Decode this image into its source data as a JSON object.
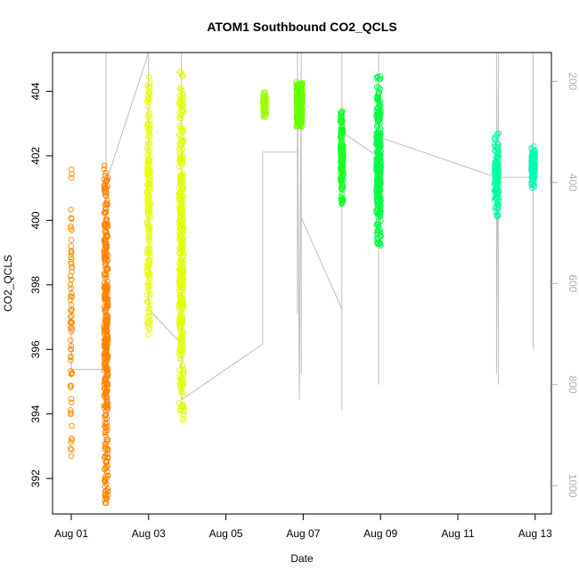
{
  "chart_data": {
    "type": "scatter",
    "title": "ATOM1 Southbound CO2_QCLS",
    "xlabel": "Date",
    "ylabel": "CO2_QCLS",
    "xlim": [
      0.0,
      12.5
    ],
    "ylim": [
      390.9,
      405.2
    ],
    "y2lim": [
      1056,
      143
    ],
    "x_ticks": [
      {
        "x": 0,
        "label": "Aug 01"
      },
      {
        "x": 2,
        "label": "Aug 03"
      },
      {
        "x": 4,
        "label": "Aug 05"
      },
      {
        "x": 6,
        "label": "Aug 07"
      },
      {
        "x": 8,
        "label": "Aug 09"
      },
      {
        "x": 10,
        "label": "Aug 11"
      },
      {
        "x": 12,
        "label": "Aug 13"
      }
    ],
    "y_ticks": [
      392,
      394,
      396,
      398,
      400,
      402,
      404
    ],
    "y2_ticks": [
      200,
      400,
      600,
      800,
      1000
    ],
    "grid": false,
    "legend": "none",
    "point_style": "open-circle",
    "secondary_series_color": "#bebebe",
    "clusters": [
      {
        "x": 0.0,
        "xspread": 0.02,
        "ymin": 392.4,
        "ymax": 401.6,
        "color": "#ff8c00",
        "n": 70
      },
      {
        "x": 0.9,
        "xspread": 0.05,
        "ymin": 391.2,
        "ymax": 401.7,
        "color": "#ff8400",
        "n": 380
      },
      {
        "x": 2.0,
        "xspread": 0.04,
        "ymin": 396.4,
        "ymax": 404.5,
        "color": "#eaff00",
        "n": 200
      },
      {
        "x": 2.85,
        "xspread": 0.06,
        "ymin": 393.7,
        "ymax": 404.7,
        "color": "#e2ff00",
        "n": 380
      },
      {
        "x": 5.0,
        "xspread": 0.04,
        "ymin": 403.2,
        "ymax": 404.0,
        "color": "#9cff00",
        "n": 80
      },
      {
        "x": 5.9,
        "xspread": 0.08,
        "ymin": 402.9,
        "ymax": 404.3,
        "color": "#66ff00",
        "n": 300
      },
      {
        "x": 7.0,
        "xspread": 0.04,
        "ymin": 400.5,
        "ymax": 403.4,
        "color": "#19ff26",
        "n": 150
      },
      {
        "x": 7.95,
        "xspread": 0.06,
        "ymin": 399.2,
        "ymax": 404.5,
        "color": "#00ff40",
        "n": 320
      },
      {
        "x": 11.0,
        "xspread": 0.06,
        "ymin": 400.1,
        "ymax": 402.7,
        "color": "#00ffa0",
        "n": 140
      },
      {
        "x": 11.95,
        "xspread": 0.05,
        "ymin": 401.0,
        "ymax": 402.3,
        "color": "#00ffb2",
        "n": 120
      }
    ],
    "altitude_path": [
      [
        0.0,
        600
      ],
      [
        0.0,
        700
      ],
      [
        0.0,
        770
      ],
      [
        0.9,
        770
      ],
      [
        0.9,
        310
      ],
      [
        0.9,
        143
      ],
      [
        0.9,
        830
      ],
      [
        0.9,
        400
      ],
      [
        2.0,
        143
      ],
      [
        2.0,
        650
      ],
      [
        2.85,
        720
      ],
      [
        2.85,
        800
      ],
      [
        2.85,
        143
      ],
      [
        2.85,
        830
      ],
      [
        4.95,
        720
      ],
      [
        4.95,
        340
      ],
      [
        5.85,
        340
      ],
      [
        5.85,
        660
      ],
      [
        5.85,
        143
      ],
      [
        5.9,
        830
      ],
      [
        5.95,
        143
      ],
      [
        5.95,
        780
      ],
      [
        5.95,
        470
      ],
      [
        7.0,
        650
      ],
      [
        7.0,
        143
      ],
      [
        7.0,
        850
      ],
      [
        7.0,
        300
      ],
      [
        7.95,
        350
      ],
      [
        7.95,
        143
      ],
      [
        7.95,
        800
      ],
      [
        7.95,
        143
      ],
      [
        7.95,
        310
      ],
      [
        11.0,
        390
      ],
      [
        11.0,
        143
      ],
      [
        11.0,
        780
      ],
      [
        11.05,
        143
      ],
      [
        11.05,
        800
      ],
      [
        11.05,
        390
      ],
      [
        11.95,
        390
      ],
      [
        11.95,
        143
      ],
      [
        11.95,
        730
      ],
      [
        11.95,
        143
      ]
    ]
  }
}
